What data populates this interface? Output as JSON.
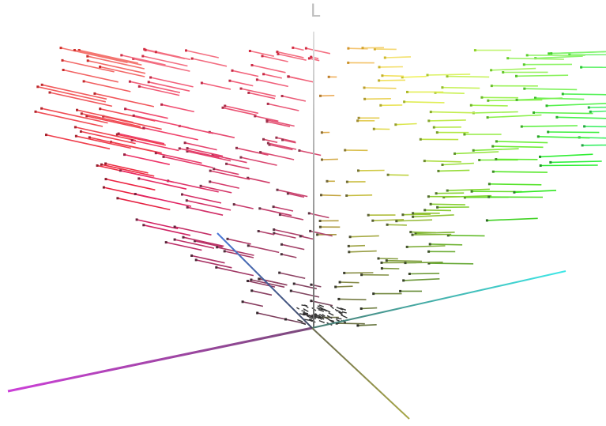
{
  "scene": {
    "vertical_axis_label": "L",
    "background": "#ffffff",
    "axis_colors": {
      "magenta_axis": "#c04bd0",
      "cyan_axis": "#40e0e0",
      "olive_axis": "#9a9a50",
      "blue_axis": "#4a6fc0",
      "vertical_axis": "#9a9a9a"
    }
  }
}
